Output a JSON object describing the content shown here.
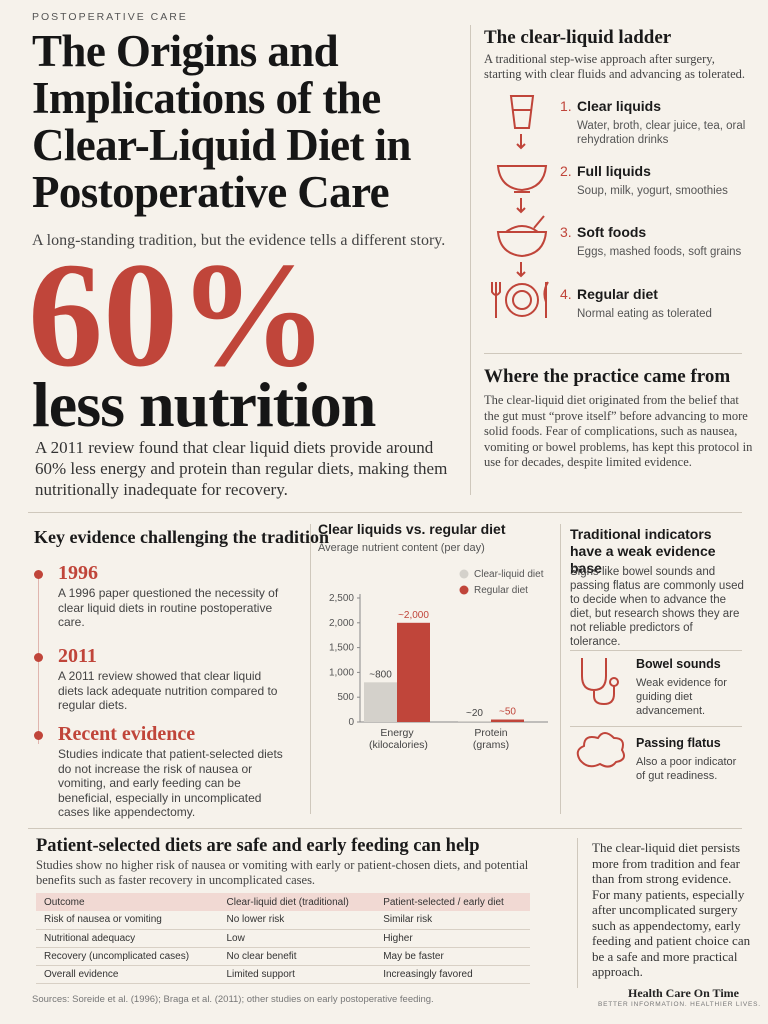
{
  "header": {
    "kicker": "POSTOPERATIVE CARE",
    "title": "The Origins and Implications of the Clear-Liquid Diet in Postoperative Care",
    "subtitle": "A long-standing tradition, but the evidence tells a different story."
  },
  "hero": {
    "stat": "60%",
    "stat_label": "less nutrition",
    "text": "A 2011 review found that clear liquid diets provide around 60% less energy and protein than regular diets, making them nutritionally inadequate for recovery."
  },
  "ladder": {
    "title": "The clear-liquid ladder",
    "description": "A traditional step-wise approach after surgery, starting with clear fluids and advancing as tolerated.",
    "steps": [
      {
        "number": "1.",
        "label": "Clear liquids",
        "detail": "Water, broth, clear juice, tea, oral rehydration drinks"
      },
      {
        "number": "2.",
        "label": "Full liquids",
        "detail": "Soup, milk, yogurt, smoothies"
      },
      {
        "number": "3.",
        "label": "Soft foods",
        "detail": "Eggs, mashed foods, soft grains"
      },
      {
        "number": "4.",
        "label": "Regular diet",
        "detail": "Normal eating as tolerated"
      }
    ]
  },
  "origins": {
    "title": "Where the practice came from",
    "text": "The clear-liquid diet originated from the belief that the gut must “prove itself” before advancing to more solid foods. Fear of complications, such as nausea, vomiting or bowel problems, has kept this protocol in use for decades, despite limited evidence."
  },
  "evidence": {
    "title": "Key evidence challenging the tradition",
    "items": [
      {
        "year": "1996",
        "text": "A 1996 paper questioned the necessity of clear liquid diets in routine postoperative care."
      },
      {
        "year": "2011",
        "text": "A 2011 review showed that clear liquid diets lack adequate nutrition compared to regular diets."
      },
      {
        "year": "Recent evidence",
        "text": "Studies indicate that patient-selected diets do not increase the risk of nausea or vomiting, and early feeding can be beneficial, especially in uncomplicated cases like appendectomy."
      }
    ]
  },
  "chart_data": {
    "type": "bar",
    "title": "Clear liquids vs. regular diet",
    "subtitle": "Average nutrient content (per day)",
    "categories": [
      "Energy (kilocalories)",
      "Protein (grams)"
    ],
    "series": [
      {
        "name": "Clear-liquid diet",
        "color": "#d4d1cb",
        "values": [
          800,
          20
        ],
        "value_labels": [
          "~800",
          "~20"
        ]
      },
      {
        "name": "Regular diet",
        "color": "#c0453a",
        "values": [
          2000,
          50
        ],
        "value_labels": [
          "~2,000",
          "~50"
        ]
      }
    ],
    "ylim": [
      0,
      2500
    ],
    "yticks": [
      0,
      500,
      {
        "value": 1000,
        "label": "1,000"
      },
      {
        "value": 1500,
        "label": "1,500"
      },
      {
        "value": 2000,
        "label": "2,000"
      },
      {
        "value": 2500,
        "label": "2,500"
      }
    ],
    "grid": false,
    "legend": "top-right"
  },
  "indicators": {
    "title": "Traditional indicators have a weak evidence base",
    "text": "Signs like bowel sounds and passing flatus are commonly used to decide when to advance the diet, but research shows they are not reliable predictors of tolerance.",
    "items": [
      {
        "label": "Bowel sounds",
        "text": "Weak evidence for guiding diet advancement."
      },
      {
        "label": "Passing flatus",
        "text": "Also a poor indicator of gut readiness."
      }
    ]
  },
  "safety": {
    "title": "Patient-selected diets are safe and early feeding can help",
    "text": "Studies show no higher risk of nausea or vomiting with early or patient-chosen diets, and potential benefits such as faster recovery in uncomplicated cases.",
    "table": {
      "header": [
        "Outcome",
        "Clear-liquid diet (traditional)",
        "Patient-selected / early diet"
      ],
      "rows": [
        [
          "Risk of nausea or vomiting",
          "No lower risk",
          "Similar risk"
        ],
        [
          "Nutritional adequacy",
          "Low",
          "Higher"
        ],
        [
          "Recovery (uncomplicated cases)",
          "No clear benefit",
          "May be faster"
        ],
        [
          "Overall evidence",
          "Limited support",
          "Increasingly favored"
        ]
      ]
    }
  },
  "conclusion": "The clear-liquid diet persists more from tradition and fear than from strong evidence. For many patients, especially after uncomplicated surgery such as appendectomy, early feeding and patient choice can be a safe and more practical approach.",
  "sources": "Sources: Soreide et al. (1996); Braga et al. (2011); other studies on early postoperative feeding.",
  "brand": {
    "name": "Health Care On Time",
    "tagline": "BETTER INFORMATION. HEALTHIER LIVES."
  }
}
